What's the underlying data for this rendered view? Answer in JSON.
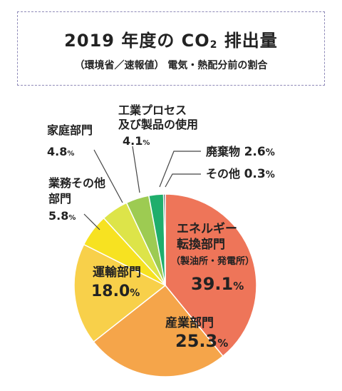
{
  "header": {
    "title_main": "2019 年度の CO",
    "title_sub": "2",
    "title_end": " 排出量",
    "subtitle": "（環境省／速報値） 電気・熱配分前の割合"
  },
  "chart_data": {
    "type": "pie",
    "title": "2019 年度の CO2 排出量",
    "subtitle": "（環境省／速報値） 電気・熱配分前の割合",
    "unit": "%",
    "start": "top, clockwise",
    "slices": [
      {
        "label": [
          "エネルギー",
          "転換部門",
          "（製油所・発電所）"
        ],
        "value": 39.1,
        "value_text": "39.1",
        "color": "#ee7559"
      },
      {
        "label": [
          "産業部門"
        ],
        "value": 25.3,
        "value_text": "25.3",
        "color": "#f5a54a"
      },
      {
        "label": [
          "運輸部門"
        ],
        "value": 18.0,
        "value_text": "18.0",
        "color": "#f8d04a"
      },
      {
        "label": [
          "業務その他",
          "部門"
        ],
        "value": 5.8,
        "value_text": "5.8",
        "color": "#f7e221"
      },
      {
        "label": [
          "家庭部門"
        ],
        "value": 4.8,
        "value_text": "4.8",
        "color": "#dde449"
      },
      {
        "label": [
          "工業プロセス",
          "及び製品の使用"
        ],
        "value": 4.1,
        "value_text": "4.1",
        "color": "#9dcb52"
      },
      {
        "label": [
          "廃棄物"
        ],
        "value": 2.6,
        "value_text": "2.6",
        "color": "#1fae6c"
      },
      {
        "label": [
          "その他"
        ],
        "value": 0.3,
        "value_text": "0.3",
        "color": "#1c2a3c"
      }
    ]
  }
}
